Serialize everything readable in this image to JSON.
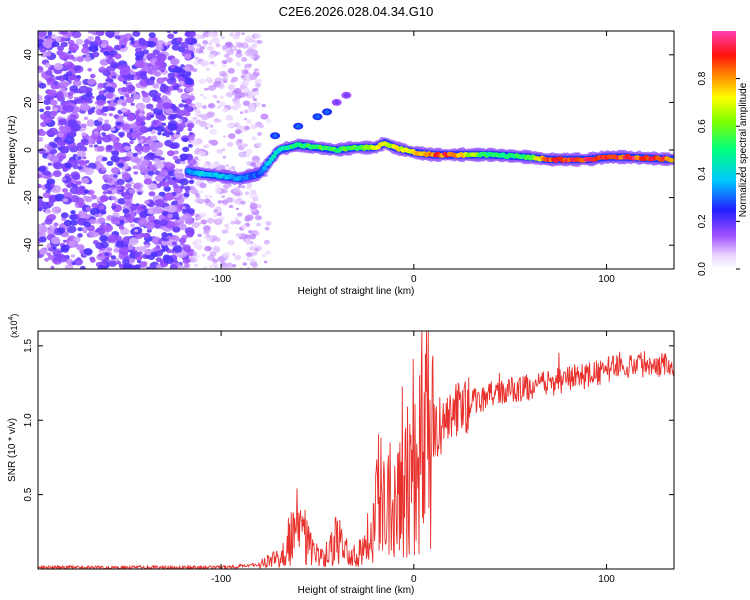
{
  "title": "C2E6.2026.028.04.34.G10",
  "colors": {
    "snr_line": "#e8312c",
    "axis": "#000000"
  },
  "chart_data": [
    {
      "type": "heatmap",
      "panel": "spectrogram",
      "xlabel": "Height of straight line (km)",
      "ylabel": "Frequency (Hz)",
      "xlim": [
        -195,
        135
      ],
      "ylim": [
        -50,
        50
      ],
      "x_ticks": [
        -100,
        0,
        100
      ],
      "y_ticks": [
        -40,
        -20,
        0,
        20,
        40
      ],
      "colorbar": {
        "label": "Normalized spectral amplitude",
        "range": [
          0.0,
          1.0
        ],
        "ticks": [
          "0.0",
          "0.2",
          "0.4",
          "0.6",
          "0.8"
        ]
      },
      "ridge": {
        "x": [
          -117,
          -110,
          -100,
          -90,
          -80,
          -75,
          -70,
          -60,
          -50,
          -40,
          -30,
          -20,
          -15,
          -10,
          -5,
          0,
          10,
          20,
          40,
          60,
          70,
          90,
          100,
          110,
          135
        ],
        "y": [
          -9,
          -10,
          -11,
          -12,
          -10,
          -5,
          0,
          2,
          1,
          0,
          1,
          1,
          3,
          1,
          0,
          -1,
          -2,
          -2,
          -2,
          -3,
          -4,
          -4,
          -3,
          -3,
          -4
        ],
        "amp": [
          0.35,
          0.4,
          0.4,
          0.35,
          0.3,
          0.4,
          0.45,
          0.55,
          0.55,
          0.6,
          0.6,
          0.7,
          0.75,
          0.7,
          0.75,
          0.75,
          0.9,
          0.9,
          0.5,
          0.6,
          0.9,
          0.95,
          0.9,
          0.95,
          0.9
        ]
      },
      "branch": {
        "x": [
          -72,
          -60,
          -50,
          -45,
          -40,
          -35
        ],
        "y": [
          6,
          10,
          14,
          16,
          20,
          23
        ]
      }
    },
    {
      "type": "line",
      "panel": "snr",
      "xlabel": "Height of straight line (km)",
      "ylabel": "SNR (10 * v/v)",
      "multiplier": "(x10",
      "multiplier_exp": "4",
      "multiplier_close": ")",
      "xlim": [
        -195,
        135
      ],
      "ylim": [
        0,
        1.6
      ],
      "x_ticks": [
        -100,
        0,
        100
      ],
      "y_ticks": [
        "0.5",
        "1.0",
        "1.5"
      ],
      "envelope": {
        "x": [
          -195,
          -100,
          -80,
          -70,
          -65,
          -60,
          -55,
          -50,
          -45,
          -40,
          -35,
          -30,
          -25,
          -20,
          -15,
          -10,
          -5,
          0,
          5,
          10,
          15,
          20,
          30,
          40,
          50,
          60,
          70,
          80,
          90,
          100,
          105,
          110,
          120,
          135
        ],
        "y": [
          0.01,
          0.01,
          0.03,
          0.08,
          0.2,
          0.3,
          0.18,
          0.08,
          0.07,
          0.2,
          0.12,
          0.08,
          0.2,
          0.4,
          0.5,
          0.55,
          0.6,
          0.7,
          0.82,
          0.9,
          0.98,
          1.05,
          1.12,
          1.17,
          1.2,
          1.22,
          1.25,
          1.28,
          1.3,
          1.33,
          1.38,
          1.37,
          1.38,
          1.38
        ]
      }
    }
  ]
}
